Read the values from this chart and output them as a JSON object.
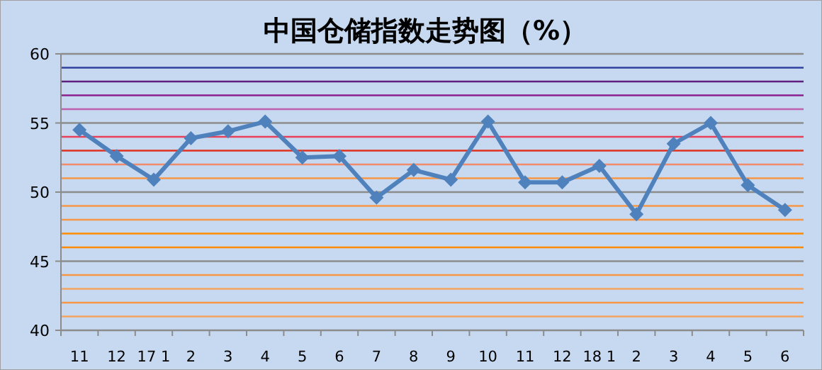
{
  "chart_data": {
    "type": "line",
    "title": "中国仓储指数走势图（%）",
    "categories": [
      "11",
      "12",
      "17 1",
      "2",
      "3",
      "4",
      "5",
      "6",
      "7",
      "8",
      "9",
      "10",
      "11",
      "12",
      "18 1",
      "2",
      "3",
      "4",
      "5",
      "6"
    ],
    "series": [
      {
        "color": "#4f81bd",
        "values": [
          54.5,
          52.6,
          50.9,
          53.9,
          54.4,
          55.1,
          52.5,
          52.6,
          49.6,
          51.6,
          50.9,
          55.1,
          50.7,
          50.7,
          51.9,
          48.4,
          53.5,
          55.0,
          50.5,
          48.7
        ]
      }
    ],
    "ylim": [
      40,
      60
    ],
    "yticks": [
      40,
      45,
      50,
      55,
      60
    ],
    "grid": "y",
    "marker": "diamond",
    "line_style": "solid",
    "ref_lines": [
      {
        "axis": "y",
        "value": 41,
        "color": "#f4a460"
      },
      {
        "axis": "y",
        "value": 42,
        "color": "#f79646"
      },
      {
        "axis": "y",
        "value": 43,
        "color": "#f4a460"
      },
      {
        "axis": "y",
        "value": 44,
        "color": "#f79646"
      },
      {
        "axis": "y",
        "value": 46,
        "color": "#ff8c00"
      },
      {
        "axis": "y",
        "value": 47,
        "color": "#ff8c00"
      },
      {
        "axis": "y",
        "value": 48,
        "color": "#f79646"
      },
      {
        "axis": "y",
        "value": 49,
        "color": "#f79646"
      },
      {
        "axis": "y",
        "value": 51,
        "color": "#f79646"
      },
      {
        "axis": "y",
        "value": 52,
        "color": "#f08c6c"
      },
      {
        "axis": "y",
        "value": 53,
        "color": "#e03020"
      },
      {
        "axis": "y",
        "value": 54,
        "color": "#e8405a"
      },
      {
        "axis": "y",
        "value": 56,
        "color": "#c060b0"
      },
      {
        "axis": "y",
        "value": 57,
        "color": "#8b2090"
      },
      {
        "axis": "y",
        "value": 58,
        "color": "#602080"
      },
      {
        "axis": "y",
        "value": 59,
        "color": "#3040a0"
      }
    ]
  }
}
